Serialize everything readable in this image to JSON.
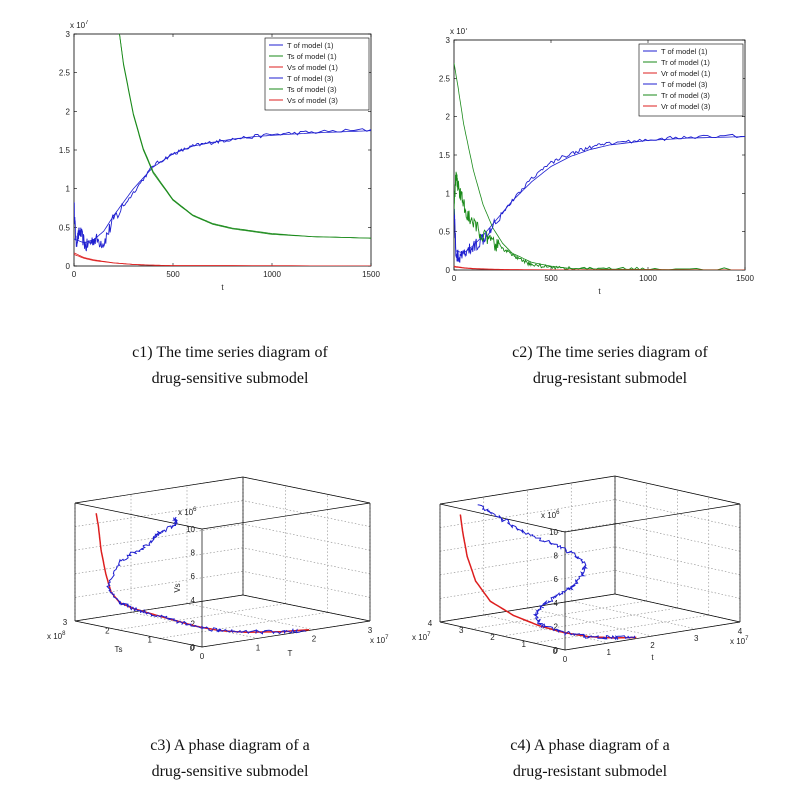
{
  "captions": {
    "c1": {
      "line1": "c1) The time series diagram of",
      "line2": "drug-sensitive submodel"
    },
    "c2": {
      "line1": "c2) The time series diagram of",
      "line2": "drug-resistant submodel"
    },
    "c3": {
      "line1": "c3) A phase diagram of a",
      "line2": "drug-sensitive submodel"
    },
    "c4": {
      "line1": "c4) A phase diagram of a",
      "line2": "drug-resistant submodel"
    }
  },
  "colors": {
    "blue": "#1f1fd0",
    "green": "#1a8a1a",
    "red": "#dd1f1f",
    "grid": "#8a8a8a"
  },
  "chart_data": [
    {
      "id": "c1",
      "type": "line",
      "xlabel": "t",
      "ylabel": "",
      "exponent_label": "x 10^7",
      "xlim": [
        0,
        1500
      ],
      "ylim": [
        0,
        3
      ],
      "xticks": [
        0,
        500,
        1000,
        1500
      ],
      "yticks": [
        0,
        0.5,
        1,
        1.5,
        2,
        2.5,
        3
      ],
      "ytick_labels": [
        "0",
        "0.5",
        "1",
        "1.5",
        "2",
        "2.5",
        "3"
      ],
      "legend": [
        "T of model (1)",
        "Ts of model (1)",
        "Vs of model (1)",
        "T of model (3)",
        "Ts of model (3)",
        "Vs of model (3)"
      ],
      "legend_colors": [
        "blue",
        "green",
        "red",
        "blue",
        "green",
        "red"
      ],
      "series": [
        {
          "name": "T of model (1)",
          "color": "blue",
          "x": [
            0,
            50,
            100,
            150,
            200,
            300,
            400,
            500,
            600,
            700,
            800,
            900,
            1000,
            1200,
            1400,
            1500
          ],
          "y": [
            0.35,
            0.3,
            0.34,
            0.45,
            0.65,
            1.0,
            1.28,
            1.45,
            1.55,
            1.6,
            1.64,
            1.67,
            1.69,
            1.72,
            1.74,
            1.75
          ]
        },
        {
          "name": "Ts of model (1)",
          "color": "green",
          "x": [
            230,
            250,
            300,
            350,
            400,
            500,
            600,
            700,
            800,
            1000,
            1200,
            1500
          ],
          "y": [
            3.0,
            2.6,
            1.95,
            1.5,
            1.2,
            0.85,
            0.65,
            0.54,
            0.48,
            0.41,
            0.38,
            0.36
          ]
        },
        {
          "name": "Vs of model (1)",
          "color": "red",
          "x": [
            0,
            50,
            100,
            200,
            300,
            400,
            500,
            1500
          ],
          "y": [
            0.15,
            0.1,
            0.07,
            0.04,
            0.02,
            0.01,
            0.005,
            0.0
          ]
        },
        {
          "name": "T of model (3)",
          "color": "blue",
          "noisy": true,
          "x": [
            0,
            10,
            30,
            60,
            100,
            150,
            200,
            300,
            400,
            500,
            600,
            700,
            800,
            1000,
            1200,
            1500
          ],
          "y": [
            0.8,
            0.3,
            0.45,
            0.25,
            0.35,
            0.3,
            0.6,
            0.95,
            1.3,
            1.45,
            1.55,
            1.6,
            1.64,
            1.7,
            1.73,
            1.76
          ]
        },
        {
          "name": "Ts of model (3)",
          "color": "green",
          "x": [
            230,
            250,
            300,
            350,
            400,
            500,
            600,
            700,
            800,
            1000,
            1200,
            1500
          ],
          "y": [
            3.0,
            2.62,
            1.97,
            1.52,
            1.22,
            0.86,
            0.66,
            0.55,
            0.49,
            0.42,
            0.38,
            0.36
          ]
        },
        {
          "name": "Vs of model (3)",
          "color": "red",
          "x": [
            0,
            50,
            100,
            200,
            300,
            400,
            500,
            1500
          ],
          "y": [
            0.17,
            0.11,
            0.08,
            0.04,
            0.02,
            0.01,
            0.005,
            0.0
          ]
        }
      ]
    },
    {
      "id": "c2",
      "type": "line",
      "xlabel": "t",
      "ylabel": "",
      "exponent_label": "x 10^7",
      "xlim": [
        0,
        1500
      ],
      "ylim": [
        0,
        3
      ],
      "xticks": [
        0,
        500,
        1000,
        1500
      ],
      "yticks": [
        0,
        0.5,
        1,
        1.5,
        2,
        2.5,
        3
      ],
      "ytick_labels": [
        "0",
        "0.5",
        "1",
        "1.5",
        "2",
        "2.5",
        "3"
      ],
      "legend": [
        "T of model (1)",
        "Tr of model (1)",
        "Vr of model (1)",
        "T of model (3)",
        "Tr of model (3)",
        "Vr of model (3)"
      ],
      "legend_colors": [
        "blue",
        "green",
        "red",
        "blue",
        "green",
        "red"
      ],
      "series": [
        {
          "name": "T of model (1)",
          "color": "blue",
          "x": [
            0,
            10,
            50,
            100,
            150,
            200,
            300,
            400,
            500,
            600,
            700,
            800,
            1000,
            1200,
            1500
          ],
          "y": [
            0.8,
            0.25,
            0.22,
            0.32,
            0.45,
            0.6,
            0.9,
            1.15,
            1.35,
            1.48,
            1.57,
            1.63,
            1.69,
            1.72,
            1.74
          ]
        },
        {
          "name": "Tr of model (1)",
          "color": "green",
          "x": [
            0,
            20,
            50,
            100,
            150,
            200,
            250,
            300,
            400,
            500,
            600,
            800,
            1500
          ],
          "y": [
            2.7,
            2.4,
            1.9,
            1.3,
            0.85,
            0.55,
            0.35,
            0.22,
            0.1,
            0.05,
            0.02,
            0.01,
            0.0
          ]
        },
        {
          "name": "Vr of model (1)",
          "color": "red",
          "x": [
            0,
            50,
            100,
            200,
            300,
            400,
            1500
          ],
          "y": [
            0.05,
            0.03,
            0.02,
            0.01,
            0.005,
            0.002,
            0.0
          ]
        },
        {
          "name": "T of model (3)",
          "color": "blue",
          "noisy": true,
          "x": [
            0,
            10,
            30,
            60,
            100,
            150,
            200,
            300,
            400,
            500,
            600,
            700,
            800,
            1000,
            1200,
            1500
          ],
          "y": [
            0.9,
            0.2,
            0.15,
            0.22,
            0.3,
            0.42,
            0.6,
            0.9,
            1.2,
            1.4,
            1.52,
            1.6,
            1.65,
            1.7,
            1.73,
            1.75
          ]
        },
        {
          "name": "Tr of model (3)",
          "color": "green",
          "noisy": true,
          "x": [
            0,
            10,
            20,
            40,
            60,
            100,
            150,
            200,
            250,
            300,
            350,
            400,
            500,
            600,
            800,
            1000,
            1500
          ],
          "y": [
            0.8,
            1.25,
            1.1,
            0.95,
            0.75,
            0.6,
            0.45,
            0.35,
            0.28,
            0.2,
            0.12,
            0.07,
            0.04,
            0.02,
            0.01,
            0.01,
            0.0
          ]
        },
        {
          "name": "Vr of model (3)",
          "color": "red",
          "x": [
            0,
            50,
            100,
            200,
            300,
            400,
            1500
          ],
          "y": [
            0.04,
            0.025,
            0.015,
            0.008,
            0.004,
            0.002,
            0.0
          ]
        }
      ]
    },
    {
      "id": "c3",
      "type": "line3d",
      "axes": {
        "x": "T",
        "y": "Ts",
        "z": "Vs"
      },
      "exponents": {
        "x": "x 10^7",
        "y": "x 10^8",
        "z": "x 10^6"
      },
      "xlim": [
        0,
        3
      ],
      "ylim": [
        0,
        3
      ],
      "zlim": [
        0,
        10
      ],
      "xticks": [
        0,
        1,
        2,
        3
      ],
      "yticks": [
        0,
        1,
        2,
        3
      ],
      "zticks": [
        0,
        2,
        4,
        6,
        8,
        10
      ],
      "series": [
        {
          "name": "model (1)",
          "color": "red",
          "x": [
            1.95,
            1.5,
            1.0,
            0.7,
            0.5,
            0.35,
            0.25,
            0.15,
            0.08,
            0.04,
            0.02,
            0.01,
            0.0,
            0.0
          ],
          "y": [
            0.05,
            0.12,
            0.3,
            0.5,
            0.8,
            1.15,
            1.5,
            1.8,
            2.05,
            2.2,
            2.3,
            2.4,
            2.45,
            2.5
          ],
          "z": [
            0.0,
            0.1,
            0.3,
            0.5,
            0.8,
            1.2,
            1.5,
            1.8,
            2.2,
            3.0,
            4.5,
            6.5,
            8.5,
            9.5
          ]
        },
        {
          "name": "model (3)",
          "color": "blue",
          "noisy": true,
          "x": [
            1.9,
            1.4,
            1.0,
            0.7,
            0.5,
            0.35,
            0.25,
            0.15,
            0.1,
            0.05,
            0.2,
            0.4,
            0.5,
            0.45,
            0.6,
            0.5
          ],
          "y": [
            0.05,
            0.15,
            0.35,
            0.55,
            0.85,
            1.2,
            1.5,
            1.85,
            2.1,
            2.3,
            2.2,
            2.0,
            1.8,
            1.6,
            1.4,
            1.3
          ],
          "z": [
            0.0,
            0.1,
            0.3,
            0.5,
            0.8,
            1.2,
            1.5,
            1.8,
            2.2,
            3.5,
            5.5,
            6.5,
            7.5,
            8.2,
            9.0,
            9.6
          ]
        }
      ]
    },
    {
      "id": "c4",
      "type": "line3d",
      "axes": {
        "x": "t",
        "y": "",
        "z": ""
      },
      "exponents": {
        "x": "x 10^7",
        "y": "x 10^7",
        "z": "x 10^6"
      },
      "xlim": [
        0,
        4
      ],
      "ylim": [
        0,
        4
      ],
      "zlim": [
        0,
        10
      ],
      "xticks": [
        0,
        1,
        2,
        3,
        4
      ],
      "yticks": [
        0,
        1,
        2,
        3,
        4
      ],
      "zticks": [
        0,
        2,
        4,
        6,
        8,
        10
      ],
      "series": [
        {
          "name": "model (1)",
          "color": "red",
          "x": [
            1.7,
            1.3,
            0.9,
            0.6,
            0.4,
            0.25,
            0.15,
            0.1,
            0.05,
            0.02,
            0.0
          ],
          "y": [
            0.1,
            0.25,
            0.5,
            0.9,
            1.4,
            2.0,
            2.6,
            3.0,
            3.2,
            3.3,
            3.35
          ],
          "z": [
            0.0,
            0.1,
            0.3,
            0.6,
            1.0,
            1.6,
            2.5,
            4.0,
            6.0,
            8.0,
            9.5
          ]
        },
        {
          "name": "model (3)",
          "color": "blue",
          "noisy": true,
          "x": [
            1.7,
            1.3,
            0.9,
            0.6,
            0.45,
            0.6,
            1.0,
            1.5,
            2.0,
            2.4,
            2.6,
            2.4,
            2.0,
            1.5,
            1.1,
            0.7
          ],
          "y": [
            0.1,
            0.25,
            0.5,
            0.9,
            1.4,
            1.8,
            2.1,
            2.4,
            2.6,
            2.8,
            3.0,
            3.2,
            3.4,
            3.6,
            3.7,
            3.75
          ],
          "z": [
            0.0,
            0.1,
            0.3,
            0.6,
            1.0,
            1.6,
            2.0,
            2.2,
            2.6,
            3.2,
            4.0,
            5.0,
            6.0,
            7.2,
            8.5,
            9.6
          ]
        }
      ]
    }
  ]
}
